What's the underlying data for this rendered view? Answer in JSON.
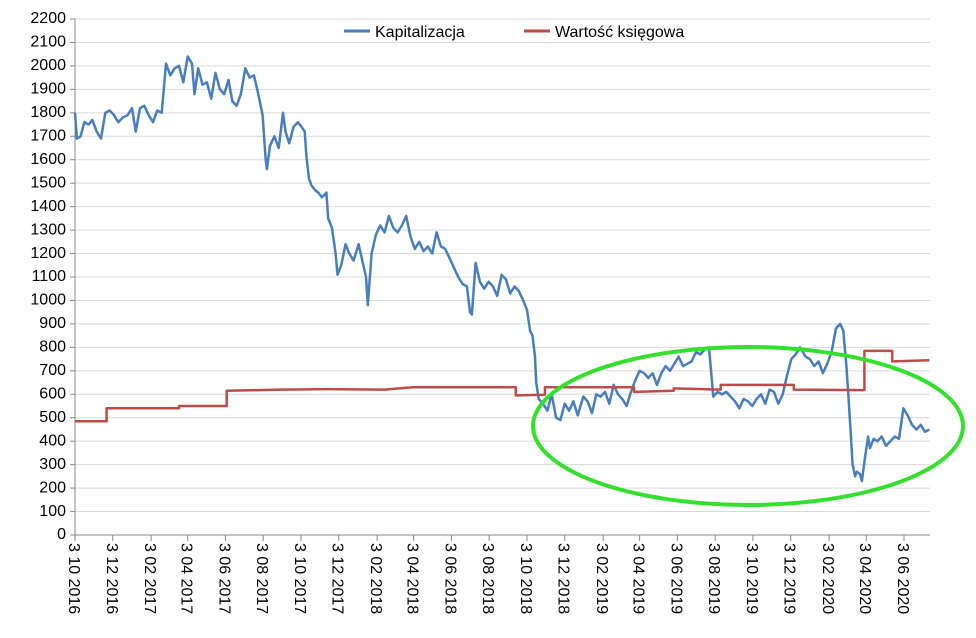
{
  "chart_data": {
    "type": "line",
    "title": "",
    "xlabel": "",
    "ylabel": "",
    "ylim": [
      0,
      2200
    ],
    "y_ticks": [
      "0",
      "100",
      "200",
      "300",
      "400",
      "500",
      "600",
      "700",
      "800",
      "900",
      "1000",
      "1100",
      "1200",
      "1300",
      "1400",
      "1500",
      "1600",
      "1700",
      "1800",
      "1900",
      "2000",
      "2100",
      "2200"
    ],
    "x_ticks": [
      "3 10 2016",
      "3 12 2016",
      "3 02 2017",
      "3 04 2017",
      "3 06 2017",
      "3 08 2017",
      "3 10 2017",
      "3 12 2017",
      "3 02 2018",
      "3 04 2018",
      "3 06 2018",
      "3 08 2018",
      "3 10 2018",
      "3 12 2018",
      "3 02 2019",
      "3 04 2019",
      "3 06 2019",
      "3 08 2019",
      "3 10 2019",
      "3 12 2019",
      "3 02 2020",
      "3 04 2020",
      "3 06 2020"
    ],
    "x_range": [
      "2016-10-03",
      "2020-07-15"
    ],
    "grid": "horizontal",
    "legend_position": "top-center",
    "series": [
      {
        "name": "Kapitalizacja",
        "color": "#4a7ebb",
        "points": [
          [
            "2016-10-03",
            1800
          ],
          [
            "2016-10-06",
            1690
          ],
          [
            "2016-10-12",
            1700
          ],
          [
            "2016-10-18",
            1760
          ],
          [
            "2016-10-25",
            1750
          ],
          [
            "2016-10-31",
            1770
          ],
          [
            "2016-11-07",
            1720
          ],
          [
            "2016-11-14",
            1690
          ],
          [
            "2016-11-21",
            1800
          ],
          [
            "2016-11-28",
            1810
          ],
          [
            "2016-12-05",
            1790
          ],
          [
            "2016-12-12",
            1760
          ],
          [
            "2016-12-19",
            1780
          ],
          [
            "2016-12-27",
            1790
          ],
          [
            "2017-01-03",
            1820
          ],
          [
            "2017-01-09",
            1720
          ],
          [
            "2017-01-16",
            1820
          ],
          [
            "2017-01-23",
            1830
          ],
          [
            "2017-01-30",
            1790
          ],
          [
            "2017-02-06",
            1760
          ],
          [
            "2017-02-13",
            1810
          ],
          [
            "2017-02-20",
            1800
          ],
          [
            "2017-02-27",
            2010
          ],
          [
            "2017-03-06",
            1960
          ],
          [
            "2017-03-13",
            1990
          ],
          [
            "2017-03-20",
            2000
          ],
          [
            "2017-03-27",
            1930
          ],
          [
            "2017-04-03",
            2040
          ],
          [
            "2017-04-10",
            2010
          ],
          [
            "2017-04-14",
            1880
          ],
          [
            "2017-04-20",
            1990
          ],
          [
            "2017-04-27",
            1920
          ],
          [
            "2017-05-04",
            1930
          ],
          [
            "2017-05-11",
            1860
          ],
          [
            "2017-05-18",
            1970
          ],
          [
            "2017-05-25",
            1900
          ],
          [
            "2017-06-01",
            1880
          ],
          [
            "2017-06-08",
            1940
          ],
          [
            "2017-06-14",
            1850
          ],
          [
            "2017-06-21",
            1830
          ],
          [
            "2017-06-28",
            1880
          ],
          [
            "2017-07-05",
            1990
          ],
          [
            "2017-07-12",
            1950
          ],
          [
            "2017-07-19",
            1960
          ],
          [
            "2017-07-26",
            1880
          ],
          [
            "2017-08-02",
            1790
          ],
          [
            "2017-08-07",
            1600
          ],
          [
            "2017-08-09",
            1560
          ],
          [
            "2017-08-14",
            1660
          ],
          [
            "2017-08-21",
            1700
          ],
          [
            "2017-08-28",
            1650
          ],
          [
            "2017-09-04",
            1800
          ],
          [
            "2017-09-08",
            1720
          ],
          [
            "2017-09-14",
            1670
          ],
          [
            "2017-09-21",
            1740
          ],
          [
            "2017-09-28",
            1760
          ],
          [
            "2017-10-04",
            1740
          ],
          [
            "2017-10-09",
            1720
          ],
          [
            "2017-10-12",
            1610
          ],
          [
            "2017-10-16",
            1520
          ],
          [
            "2017-10-20",
            1490
          ],
          [
            "2017-10-26",
            1470
          ],
          [
            "2017-10-31",
            1460
          ],
          [
            "2017-11-06",
            1440
          ],
          [
            "2017-11-13",
            1460
          ],
          [
            "2017-11-16",
            1350
          ],
          [
            "2017-11-22",
            1310
          ],
          [
            "2017-11-28",
            1200
          ],
          [
            "2017-12-01",
            1110
          ],
          [
            "2017-12-07",
            1150
          ],
          [
            "2017-12-14",
            1240
          ],
          [
            "2017-12-20",
            1200
          ],
          [
            "2017-12-27",
            1170
          ],
          [
            "2018-01-04",
            1240
          ],
          [
            "2018-01-10",
            1170
          ],
          [
            "2018-01-16",
            1100
          ],
          [
            "2018-01-19",
            980
          ],
          [
            "2018-01-25",
            1200
          ],
          [
            "2018-02-01",
            1280
          ],
          [
            "2018-02-08",
            1320
          ],
          [
            "2018-02-15",
            1290
          ],
          [
            "2018-02-22",
            1360
          ],
          [
            "2018-03-01",
            1310
          ],
          [
            "2018-03-08",
            1290
          ],
          [
            "2018-03-15",
            1320
          ],
          [
            "2018-03-22",
            1360
          ],
          [
            "2018-03-29",
            1270
          ],
          [
            "2018-04-05",
            1220
          ],
          [
            "2018-04-12",
            1250
          ],
          [
            "2018-04-19",
            1210
          ],
          [
            "2018-04-26",
            1230
          ],
          [
            "2018-05-03",
            1200
          ],
          [
            "2018-05-10",
            1290
          ],
          [
            "2018-05-17",
            1230
          ],
          [
            "2018-05-24",
            1220
          ],
          [
            "2018-05-31",
            1180
          ],
          [
            "2018-06-07",
            1140
          ],
          [
            "2018-06-14",
            1100
          ],
          [
            "2018-06-21",
            1070
          ],
          [
            "2018-06-28",
            1060
          ],
          [
            "2018-07-03",
            950
          ],
          [
            "2018-07-06",
            940
          ],
          [
            "2018-07-12",
            1160
          ],
          [
            "2018-07-19",
            1080
          ],
          [
            "2018-07-26",
            1050
          ],
          [
            "2018-08-02",
            1080
          ],
          [
            "2018-08-09",
            1060
          ],
          [
            "2018-08-16",
            1020
          ],
          [
            "2018-08-23",
            1110
          ],
          [
            "2018-08-30",
            1090
          ],
          [
            "2018-09-06",
            1030
          ],
          [
            "2018-09-13",
            1060
          ],
          [
            "2018-09-20",
            1040
          ],
          [
            "2018-09-27",
            1000
          ],
          [
            "2018-10-03",
            960
          ],
          [
            "2018-10-08",
            870
          ],
          [
            "2018-10-12",
            850
          ],
          [
            "2018-10-16",
            760
          ],
          [
            "2018-10-18",
            650
          ],
          [
            "2018-10-22",
            580
          ],
          [
            "2018-10-29",
            560
          ],
          [
            "2018-11-05",
            530
          ],
          [
            "2018-11-12",
            600
          ],
          [
            "2018-11-19",
            500
          ],
          [
            "2018-11-26",
            490
          ],
          [
            "2018-12-03",
            560
          ],
          [
            "2018-12-10",
            530
          ],
          [
            "2018-12-17",
            570
          ],
          [
            "2018-12-24",
            510
          ],
          [
            "2019-01-02",
            590
          ],
          [
            "2019-01-09",
            570
          ],
          [
            "2019-01-16",
            520
          ],
          [
            "2019-01-23",
            600
          ],
          [
            "2019-01-30",
            590
          ],
          [
            "2019-02-06",
            610
          ],
          [
            "2019-02-13",
            560
          ],
          [
            "2019-02-20",
            640
          ],
          [
            "2019-02-27",
            600
          ],
          [
            "2019-03-06",
            580
          ],
          [
            "2019-03-13",
            550
          ],
          [
            "2019-03-20",
            610
          ],
          [
            "2019-03-27",
            660
          ],
          [
            "2019-04-03",
            700
          ],
          [
            "2019-04-10",
            690
          ],
          [
            "2019-04-17",
            670
          ],
          [
            "2019-04-24",
            690
          ],
          [
            "2019-05-01",
            640
          ],
          [
            "2019-05-08",
            690
          ],
          [
            "2019-05-15",
            720
          ],
          [
            "2019-05-22",
            700
          ],
          [
            "2019-05-29",
            730
          ],
          [
            "2019-06-05",
            760
          ],
          [
            "2019-06-12",
            720
          ],
          [
            "2019-06-19",
            730
          ],
          [
            "2019-06-26",
            740
          ],
          [
            "2019-07-03",
            780
          ],
          [
            "2019-07-10",
            770
          ],
          [
            "2019-07-17",
            790
          ],
          [
            "2019-07-24",
            800
          ],
          [
            "2019-07-31",
            590
          ],
          [
            "2019-08-07",
            610
          ],
          [
            "2019-08-14",
            600
          ],
          [
            "2019-08-21",
            610
          ],
          [
            "2019-08-28",
            590
          ],
          [
            "2019-09-04",
            570
          ],
          [
            "2019-09-11",
            540
          ],
          [
            "2019-09-18",
            580
          ],
          [
            "2019-09-25",
            570
          ],
          [
            "2019-10-02",
            550
          ],
          [
            "2019-10-09",
            580
          ],
          [
            "2019-10-16",
            600
          ],
          [
            "2019-10-23",
            560
          ],
          [
            "2019-10-30",
            620
          ],
          [
            "2019-11-06",
            610
          ],
          [
            "2019-11-13",
            560
          ],
          [
            "2019-11-20",
            600
          ],
          [
            "2019-11-27",
            680
          ],
          [
            "2019-12-04",
            750
          ],
          [
            "2019-12-11",
            770
          ],
          [
            "2019-12-18",
            800
          ],
          [
            "2019-12-27",
            760
          ],
          [
            "2020-01-03",
            750
          ],
          [
            "2020-01-10",
            720
          ],
          [
            "2020-01-17",
            740
          ],
          [
            "2020-01-24",
            690
          ],
          [
            "2020-01-31",
            730
          ],
          [
            "2020-02-07",
            780
          ],
          [
            "2020-02-14",
            880
          ],
          [
            "2020-02-21",
            900
          ],
          [
            "2020-02-26",
            870
          ],
          [
            "2020-03-02",
            720
          ],
          [
            "2020-03-05",
            600
          ],
          [
            "2020-03-09",
            430
          ],
          [
            "2020-03-12",
            300
          ],
          [
            "2020-03-16",
            250
          ],
          [
            "2020-03-19",
            270
          ],
          [
            "2020-03-24",
            260
          ],
          [
            "2020-03-27",
            230
          ],
          [
            "2020-04-01",
            330
          ],
          [
            "2020-04-06",
            420
          ],
          [
            "2020-04-09",
            370
          ],
          [
            "2020-04-15",
            410
          ],
          [
            "2020-04-21",
            400
          ],
          [
            "2020-04-28",
            420
          ],
          [
            "2020-05-05",
            380
          ],
          [
            "2020-05-12",
            400
          ],
          [
            "2020-05-19",
            420
          ],
          [
            "2020-05-26",
            410
          ],
          [
            "2020-06-02",
            540
          ],
          [
            "2020-06-09",
            510
          ],
          [
            "2020-06-16",
            470
          ],
          [
            "2020-06-23",
            450
          ],
          [
            "2020-06-30",
            470
          ],
          [
            "2020-07-07",
            440
          ],
          [
            "2020-07-14",
            450
          ]
        ]
      },
      {
        "name": "Wartość księgowa",
        "color": "#be4b48",
        "points": [
          [
            "2016-10-03",
            485
          ],
          [
            "2016-11-23",
            485
          ],
          [
            "2016-11-23",
            540
          ],
          [
            "2017-03-20",
            540
          ],
          [
            "2017-03-20",
            550
          ],
          [
            "2017-06-05",
            550
          ],
          [
            "2017-06-05",
            615
          ],
          [
            "2017-09-01",
            620
          ],
          [
            "2017-11-15",
            622
          ],
          [
            "2018-02-15",
            620
          ],
          [
            "2018-04-01",
            630
          ],
          [
            "2018-09-15",
            630
          ],
          [
            "2018-09-15",
            595
          ],
          [
            "2018-11-01",
            598
          ],
          [
            "2018-11-01",
            630
          ],
          [
            "2019-03-25",
            630
          ],
          [
            "2019-03-25",
            610
          ],
          [
            "2019-05-28",
            615
          ],
          [
            "2019-05-28",
            625
          ],
          [
            "2019-08-12",
            620
          ],
          [
            "2019-08-12",
            640
          ],
          [
            "2019-10-05",
            640
          ],
          [
            "2019-12-08",
            640
          ],
          [
            "2019-12-08",
            620
          ],
          [
            "2020-03-31",
            618
          ],
          [
            "2020-03-31",
            785
          ],
          [
            "2020-05-15",
            785
          ],
          [
            "2020-05-15",
            740
          ],
          [
            "2020-07-14",
            745
          ]
        ]
      }
    ]
  },
  "annotation": {
    "ellipse_color": "#33e02c"
  },
  "style": {
    "grid_color": "#d9d9d9",
    "axis_color": "#888888"
  }
}
